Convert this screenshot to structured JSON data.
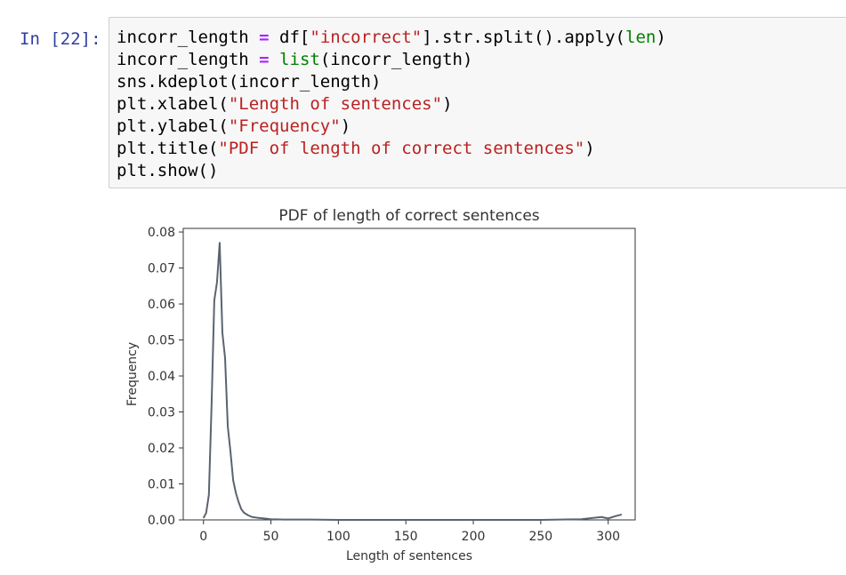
{
  "cell": {
    "prompt": "In [22]:",
    "code_lines": [
      [
        {
          "t": "incorr_length "
        },
        {
          "t": "=",
          "c": "o"
        },
        {
          "t": " df["
        },
        {
          "t": "\"incorrect\"",
          "c": "s"
        },
        {
          "t": "].str.split().apply("
        },
        {
          "t": "len",
          "c": "b"
        },
        {
          "t": ")"
        }
      ],
      [
        {
          "t": "incorr_length "
        },
        {
          "t": "=",
          "c": "o"
        },
        {
          "t": " "
        },
        {
          "t": "list",
          "c": "b"
        },
        {
          "t": "(incorr_length)"
        }
      ],
      [
        {
          "t": "sns.kdeplot(incorr_length)"
        }
      ],
      [
        {
          "t": "plt.xlabel("
        },
        {
          "t": "\"Length of sentences\"",
          "c": "s"
        },
        {
          "t": ")"
        }
      ],
      [
        {
          "t": "plt.ylabel("
        },
        {
          "t": "\"Frequency\"",
          "c": "s"
        },
        {
          "t": ")"
        }
      ],
      [
        {
          "t": "plt.title("
        },
        {
          "t": "\"PDF of length of correct sentences\"",
          "c": "s"
        },
        {
          "t": ")"
        }
      ],
      [
        {
          "t": "plt.show()"
        }
      ]
    ]
  },
  "chart_data": {
    "type": "line",
    "title": "PDF of length of correct sentences",
    "xlabel": "Length of sentences",
    "ylabel": "Frequency",
    "xlim": [
      -15,
      320
    ],
    "ylim": [
      0.0,
      0.081
    ],
    "x_ticks": [
      0,
      50,
      100,
      150,
      200,
      250,
      300
    ],
    "y_ticks": [
      0.0,
      0.01,
      0.02,
      0.03,
      0.04,
      0.05,
      0.06,
      0.07,
      0.08
    ],
    "y_tick_labels": [
      "0.00",
      "0.01",
      "0.02",
      "0.03",
      "0.04",
      "0.05",
      "0.06",
      "0.07",
      "0.08"
    ],
    "grid": false,
    "series_color": "#5a6470",
    "series": [
      {
        "x": [
          0,
          2,
          4,
          6,
          8,
          10,
          12,
          14,
          16,
          18,
          20,
          22,
          24,
          26,
          28,
          30,
          33,
          36,
          40,
          45,
          50,
          60,
          80,
          100,
          150,
          200,
          250,
          280,
          295,
          300,
          305,
          310
        ],
        "y": [
          0.0005,
          0.002,
          0.007,
          0.032,
          0.061,
          0.066,
          0.077,
          0.052,
          0.045,
          0.026,
          0.019,
          0.011,
          0.0075,
          0.005,
          0.003,
          0.002,
          0.0013,
          0.0008,
          0.0006,
          0.0004,
          0.0002,
          0.0001,
          0.0001,
          0.0,
          0.0,
          0.0,
          0.0,
          0.0002,
          0.0008,
          0.0004,
          0.001,
          0.0015
        ]
      }
    ]
  }
}
